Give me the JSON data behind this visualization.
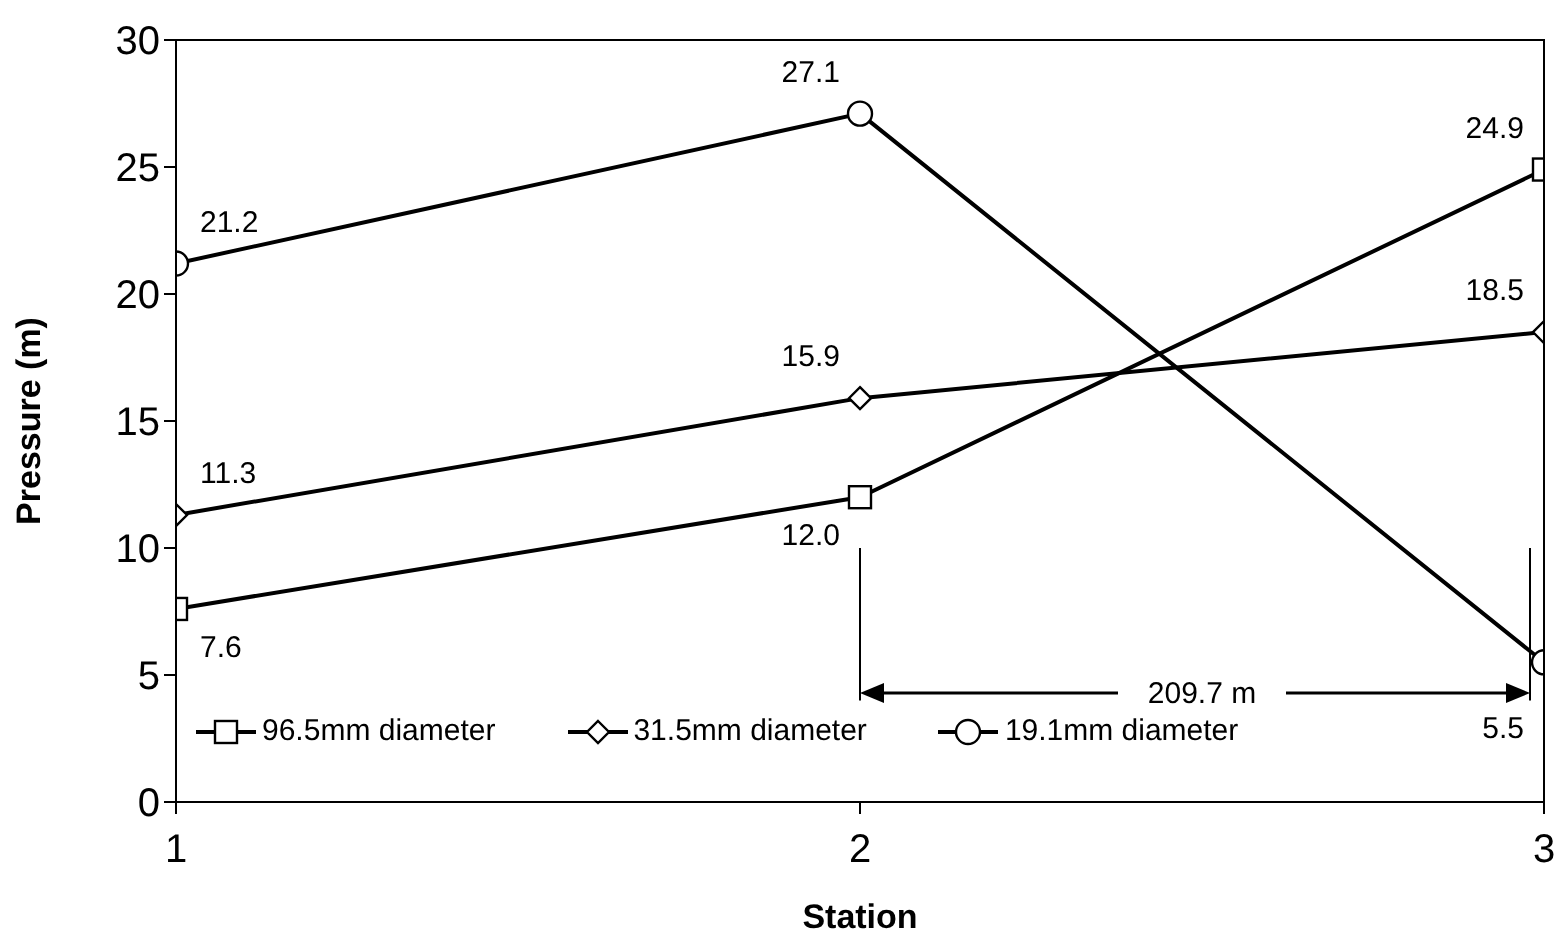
{
  "chart_data": {
    "type": "line",
    "xlabel": "Station",
    "ylabel": "Pressure (m)",
    "x": [
      1,
      2,
      3
    ],
    "xlim": [
      1,
      3
    ],
    "xticks": [
      1,
      2,
      3
    ],
    "ylim": [
      0,
      30
    ],
    "yticks": [
      0,
      5,
      10,
      15,
      20,
      25,
      30
    ],
    "legend": "bottom left",
    "series": [
      {
        "name": "96.5mm diameter",
        "color": "#000000",
        "marker": "square",
        "values": [
          7.6,
          12.0,
          24.9
        ],
        "value_labels": [
          "7.6",
          "12.0",
          "24.9"
        ]
      },
      {
        "name": "31.5mm diameter",
        "color": "#000000",
        "marker": "diamond",
        "values": [
          11.3,
          15.9,
          18.5
        ],
        "value_labels": [
          "11.3",
          "15.9",
          "18.5"
        ]
      },
      {
        "name": "19.1mm diameter",
        "color": "#000000",
        "marker": "circle",
        "values": [
          21.2,
          27.1,
          5.5
        ],
        "value_labels": [
          "21.2",
          "27.1",
          "5.5"
        ]
      }
    ],
    "annotations": [
      "209.7 m"
    ]
  }
}
